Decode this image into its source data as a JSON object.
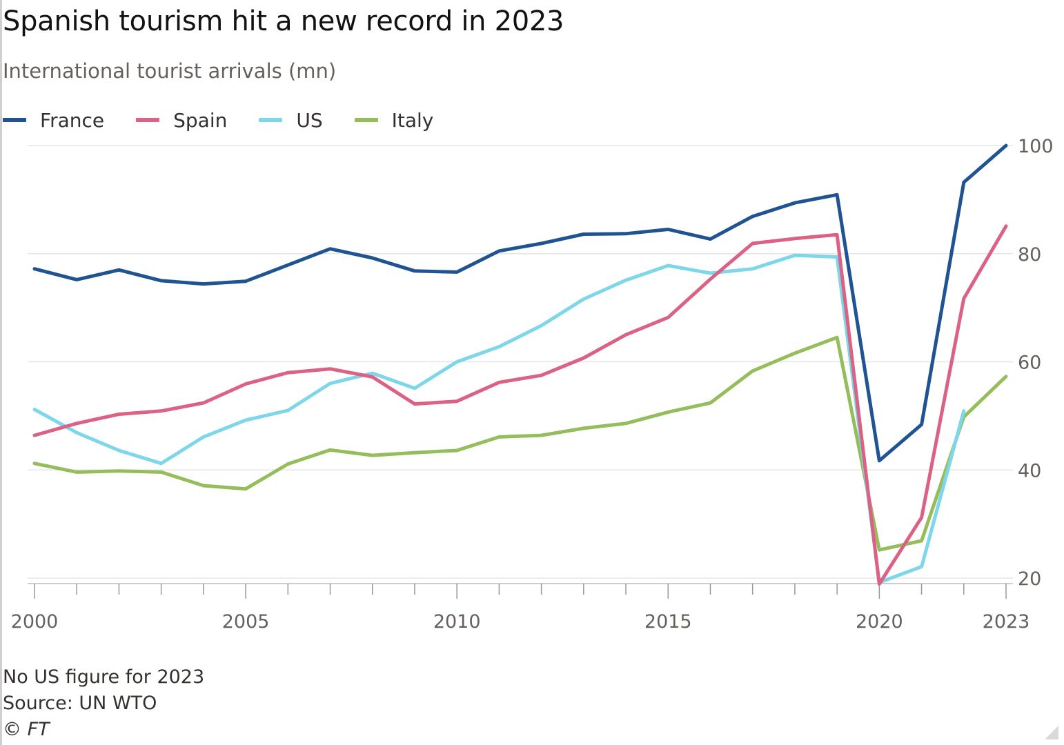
{
  "title": "Spanish tourism hit a new record in 2023",
  "subtitle": "International tourist arrivals (mn)",
  "footnote": {
    "note": "No US figure for 2023",
    "source": "Source: UN WTO",
    "copyright": "© FT"
  },
  "colors": {
    "France": "#1f5392",
    "Spain": "#db6285",
    "US": "#7ed6e9",
    "Italy": "#96bd5c",
    "gridline": "#e6e6e6",
    "tick_label": "#66605c"
  },
  "chart_data": {
    "type": "line",
    "x": [
      2000,
      2001,
      2002,
      2003,
      2004,
      2005,
      2006,
      2007,
      2008,
      2009,
      2010,
      2011,
      2012,
      2013,
      2014,
      2015,
      2016,
      2017,
      2018,
      2019,
      2020,
      2021,
      2022,
      2023
    ],
    "series": [
      {
        "name": "France",
        "values": [
          77.2,
          75.2,
          77.0,
          75.0,
          74.4,
          74.9,
          77.9,
          80.9,
          79.2,
          76.8,
          76.6,
          80.5,
          81.9,
          83.6,
          83.7,
          84.5,
          82.7,
          86.9,
          89.4,
          90.9,
          41.7,
          48.4,
          93.2,
          100.0
        ]
      },
      {
        "name": "Spain",
        "values": [
          46.4,
          48.6,
          50.3,
          50.9,
          52.4,
          55.9,
          58.0,
          58.7,
          57.2,
          52.2,
          52.7,
          56.2,
          57.5,
          60.7,
          65.0,
          68.2,
          75.3,
          81.9,
          82.8,
          83.5,
          18.9,
          31.2,
          71.7,
          85.1
        ]
      },
      {
        "name": "US",
        "values": [
          51.2,
          46.9,
          43.6,
          41.2,
          46.1,
          49.2,
          51.0,
          56.0,
          57.9,
          55.1,
          60.0,
          62.8,
          66.7,
          71.6,
          75.1,
          77.8,
          76.4,
          77.2,
          79.7,
          79.4,
          19.2,
          22.1,
          50.9,
          null
        ]
      },
      {
        "name": "Italy",
        "values": [
          41.2,
          39.6,
          39.8,
          39.6,
          37.1,
          36.5,
          41.1,
          43.7,
          42.7,
          43.2,
          43.6,
          46.1,
          46.4,
          47.7,
          48.6,
          50.7,
          52.4,
          58.3,
          61.6,
          64.5,
          25.2,
          26.9,
          49.8,
          57.3
        ]
      }
    ],
    "xlim": [
      2000,
      2023
    ],
    "ylim": [
      20,
      100
    ],
    "x_ticks": [
      "2000",
      "2005",
      "2010",
      "2015",
      "2020",
      "2023"
    ],
    "y_ticks": [
      "20",
      "40",
      "60",
      "80",
      "100"
    ],
    "y_axis_side": "right",
    "grid": "horizontal",
    "legend_position": "top-left"
  }
}
